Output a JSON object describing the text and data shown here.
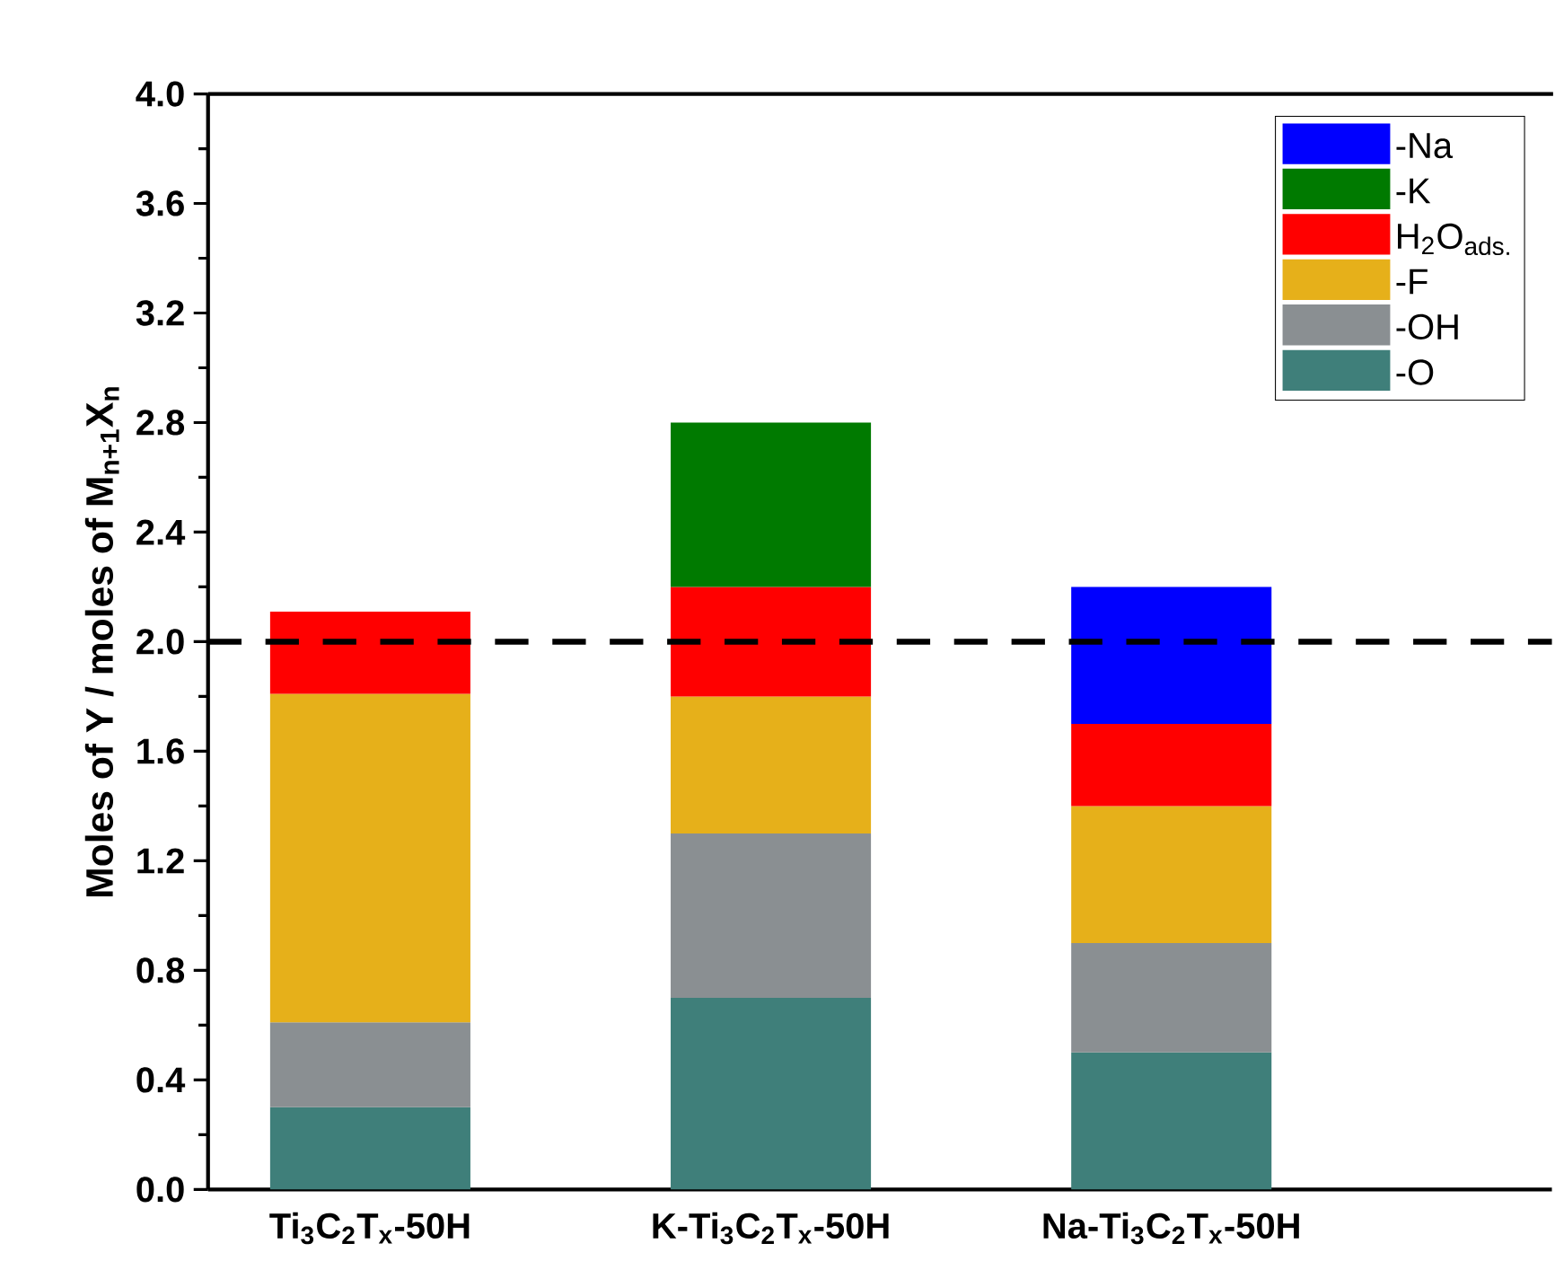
{
  "chart_data": {
    "type": "bar",
    "stacked": true,
    "ylabel": "Moles of Y / moles of M$_{n+1}$X$_{n}$",
    "categories": [
      "Ti$_{3}$C$_{2}$T$_{x}$-50H",
      "K-Ti$_{3}$C$_{2}$T$_{x}$-50H",
      "Na-Ti$_{3}$C$_{2}$T$_{x}$-50H"
    ],
    "series": [
      {
        "name": "-O",
        "color": "#3f7f7a",
        "values": [
          0.3,
          0.7,
          0.5
        ]
      },
      {
        "name": "-OH",
        "color": "#8a8f92",
        "values": [
          0.31,
          0.6,
          0.4
        ]
      },
      {
        "name": "-F",
        "color": "#e6b01a",
        "values": [
          1.2,
          0.5,
          0.5
        ]
      },
      {
        "name": "H$_{2}$O$_{ads.}$",
        "color": "#ff0000",
        "values": [
          0.3,
          0.4,
          0.3
        ]
      },
      {
        "name": "-K",
        "color": "#007a00",
        "values": [
          null,
          0.6,
          null
        ]
      },
      {
        "name": "-Na",
        "color": "#0000ff",
        "values": [
          null,
          null,
          0.5
        ]
      }
    ],
    "ylim": [
      0,
      4.0
    ],
    "yticks": [
      {
        "value": 0,
        "label": "0.0"
      },
      {
        "value": 0.4,
        "label": "0.4"
      },
      {
        "value": 0.8,
        "label": "0.8"
      },
      {
        "value": 1.2,
        "label": "1.2"
      },
      {
        "value": 1.6,
        "label": "1.6"
      },
      {
        "value": 2.0,
        "label": "2.0"
      },
      {
        "value": 2.4,
        "label": "2.4"
      },
      {
        "value": 2.8,
        "label": "2.8"
      },
      {
        "value": 3.2,
        "label": "3.2"
      },
      {
        "value": 3.6,
        "label": "3.6"
      },
      {
        "value": 4.0,
        "label": "4.0"
      }
    ],
    "ref_lines": [
      {
        "axis": "y",
        "value": 2.0,
        "color": "#000000",
        "line_style": "dashed"
      }
    ],
    "legend": "top right"
  }
}
